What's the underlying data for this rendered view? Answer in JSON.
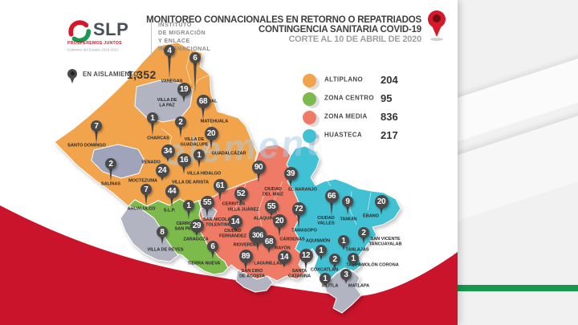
{
  "brand": {
    "slp": "SLP",
    "slogan": "PROSPEREMOS JUNTOS",
    "government": "Gobierno del Estado 2019-2021",
    "institute_lines": [
      "INSTITUTO",
      "DE MIGRACIÓN",
      "Y ENLACE",
      "INTERNACIONAL"
    ]
  },
  "title": {
    "line1": "MONITOREO CONNACIONALES EN RETORNO O REPATRIADOS",
    "line2": "CONTINGENCIA SANITARIA COVID-19",
    "line3": "CORTE AL 10 DE ABRIL DE 2020"
  },
  "isolation": {
    "label": "EN AISLAMIENTO",
    "value": "1,352"
  },
  "legend": [
    {
      "label": "ALTIPLANO",
      "value": "204",
      "color": "#F2A44C"
    },
    {
      "label": "ZONA CENTRO",
      "value": "95",
      "color": "#7CBA4B"
    },
    {
      "label": "ZONA MEDIA",
      "value": "836",
      "color": "#EF7B66"
    },
    {
      "label": "HUASTECA",
      "value": "217",
      "color": "#41C1D3"
    }
  ],
  "watermark": "element",
  "design": {
    "red": "#C9142B",
    "green_bar": "#17984D",
    "badge": "#4A4A4A",
    "watermark_color": "#A9CBE2",
    "title_color": "#3E3E3E",
    "subtitle_color": "#9E9E9E"
  },
  "map": {
    "zone_colors": {
      "altiplano": "#F2A44C",
      "centro": "#7CBA4B",
      "media": "#EF7B66",
      "huasteca": "#41C1D3",
      "sin_datos": "#B2B5C1",
      "sin_datos_2": "#9FA4BA"
    },
    "municipalities": [
      {
        "name": "Vanegas",
        "zone": "altiplano",
        "value": "4",
        "b": [
          211,
          63
        ],
        "l": [
          214,
          101
        ],
        "lines": [
          "VANEGAS"
        ],
        "t": 30
      },
      {
        "name": "Cedral",
        "zone": "altiplano",
        "value": "6",
        "b": [
          243,
          72
        ],
        "l": [
          259,
          126
        ],
        "lines": [
          "CEDRAL"
        ],
        "t": 40
      },
      {
        "name": "Villa de la Paz",
        "zone": "altiplano",
        "value": "19",
        "b": [
          229,
          111
        ],
        "l": [
          208,
          128
        ],
        "lines": [
          "VILLA DE",
          "LA PAZ"
        ],
        "t": 10
      },
      {
        "name": "Matehuala",
        "zone": "altiplano",
        "value": "68",
        "b": [
          253,
          126
        ],
        "l": [
          267,
          151
        ],
        "lines": [
          "MATEHUALA"
        ],
        "t": 16
      },
      {
        "name": "Charcas",
        "zone": "altiplano",
        "value": "1",
        "b": [
          190,
          147
        ],
        "l": [
          197,
          172
        ],
        "lines": [
          "CHARCAS"
        ],
        "t": 17
      },
      {
        "name": "Villa de Guadalupe",
        "zone": "altiplano",
        "value": "2",
        "b": [
          225,
          152
        ],
        "l": [
          242,
          177
        ],
        "lines": [
          "VILLA DE",
          "GUADALUPE"
        ],
        "t": 15
      },
      {
        "name": "Santo Domingo",
        "zone": "altiplano",
        "value": "7",
        "b": [
          120,
          157
        ],
        "l": [
          108,
          181
        ],
        "lines": [
          "SANTO DOMINGO"
        ],
        "t": 17
      },
      {
        "name": "Salinas",
        "zone": "altiplano",
        "value": "2",
        "b": [
          138,
          204
        ],
        "l": [
          138,
          229
        ],
        "lines": [
          "SALINAS"
        ],
        "t": 17
      },
      {
        "name": "Venado",
        "zone": "altiplano",
        "value": "34",
        "b": [
          209,
          188
        ],
        "l": [
          188,
          202
        ],
        "lines": [
          "VENADO"
        ],
        "t": 7
      },
      {
        "name": "Moctezuma",
        "zone": "altiplano",
        "value": "24",
        "b": [
          202,
          212
        ],
        "l": [
          178,
          225
        ],
        "lines": [
          "MOCTEZUMA"
        ],
        "t": 7
      },
      {
        "name": "Villa de Arista",
        "zone": "altiplano",
        "value": "16",
        "b": [
          229,
          199
        ],
        "l": [
          237,
          227
        ],
        "lines": [
          "VILLA DE ARISTA"
        ],
        "t": 11
      },
      {
        "name": "Villa Hidalgo",
        "zone": "altiplano",
        "value": "1",
        "b": [
          248,
          193
        ],
        "l": [
          254,
          216
        ],
        "lines": [
          "VILLA HIDALGO"
        ],
        "t": 11
      },
      {
        "name": "Guadalcázar",
        "zone": "altiplano",
        "value": "20",
        "b": [
          263,
          166
        ],
        "l": [
          285,
          191
        ],
        "lines": [
          "GUADALCÁZAR"
        ],
        "t": 13
      },
      {
        "name": "Ahualulco",
        "zone": "centro",
        "value": "7",
        "b": [
          182,
          236
        ],
        "l": [
          176,
          260
        ],
        "lines": [
          "AHUALULCO"
        ],
        "t": 15
      },
      {
        "name": "San Luis Potosí",
        "zone": "centro",
        "value": "44",
        "b": [
          214,
          238
        ],
        "l": [
          211,
          262
        ],
        "lines": [
          "S.L.P."
        ],
        "t": 13
      },
      {
        "name": "Cerro de San Pedro",
        "zone": "centro",
        "value": "1",
        "b": [
          235,
          256
        ],
        "l": [
          234,
          282
        ],
        "lines": [
          "CERRO DE",
          "SAN PEDRO"
        ],
        "t": 12
      },
      {
        "name": "Zaragoza",
        "zone": "centro",
        "value": "29",
        "b": [
          245,
          281
        ],
        "l": [
          244,
          298
        ],
        "lines": [
          "ZARAGOZA"
        ],
        "t": 7
      },
      {
        "name": "Villa de Reyes",
        "zone": "centro",
        "value": "8",
        "b": [
          202,
          289
        ],
        "l": [
          206,
          311
        ],
        "lines": [
          "VILLA DE REYES"
        ],
        "t": 11
      },
      {
        "name": "Tierra Nueva",
        "zone": "centro",
        "value": "6",
        "b": [
          265,
          307
        ],
        "l": [
          254,
          328
        ],
        "lines": [
          "TIERRA NUEVA"
        ],
        "t": 11
      },
      {
        "name": "Ciudad del Maíz",
        "zone": "media",
        "value": "90",
        "b": [
          322,
          208
        ],
        "l": [
          340,
          239
        ],
        "lines": [
          "CIUDAD",
          "DEL MAÍZ"
        ],
        "t": 13
      },
      {
        "name": "Cerritos",
        "zone": "media",
        "value": "61",
        "b": [
          274,
          231
        ],
        "l": [
          291,
          254
        ],
        "lines": [
          "CERRITOS"
        ],
        "t": 13
      },
      {
        "name": "Villa Juárez",
        "zone": "media",
        "value": "52",
        "b": [
          300,
          241
        ],
        "l": [
          303,
          261
        ],
        "lines": [
          "VILLA JUÁREZ"
        ],
        "t": 9
      },
      {
        "name": "San Nicolás Tolentino",
        "zone": "media",
        "value": "55",
        "b": [
          258,
          252
        ],
        "l": [
          272,
          277
        ],
        "lines": [
          "SAN NICOLÁS",
          "TOLENTINO"
        ],
        "t": 12
      },
      {
        "name": "Alaquines",
        "zone": "media",
        "value": "55",
        "b": [
          338,
          257
        ],
        "l": [
          332,
          272
        ],
        "lines": [
          "ALAQUINES"
        ],
        "t": 6
      },
      {
        "name": "Ciudad Fernández",
        "zone": "media",
        "value": "14",
        "b": [
          293,
          276
        ],
        "l": [
          290,
          291
        ],
        "lines": [
          "CIUDAD",
          "FERNÁNDEZ"
        ],
        "t": 5
      },
      {
        "name": "Rioverde",
        "zone": "media",
        "value": "306",
        "b": [
          321,
          293
        ],
        "l": [
          305,
          305
        ],
        "lines": [
          "RIOVERDE"
        ],
        "t": 11
      },
      {
        "name": "Rayón",
        "zone": "media",
        "value": "68",
        "b": [
          335,
          301
        ],
        "l": [
          352,
          309
        ],
        "lines": [
          "RAYÓN"
        ],
        "t": 8
      },
      {
        "name": "Cárdenas",
        "zone": "media",
        "value": "20",
        "b": [
          348,
          275
        ],
        "l": [
          364,
          298
        ],
        "lines": [
          "CÁRDENAS"
        ],
        "t": 13
      },
      {
        "name": "San Ciro de Acosta",
        "zone": "media",
        "value": "89",
        "b": [
          306,
          319
        ],
        "l": [
          314,
          341
        ],
        "lines": [
          "SAN CIRO",
          "DE ACOSTA"
        ],
        "t": 12
      },
      {
        "name": "Lagunillas",
        "zone": "media",
        "value": "14",
        "b": [
          354,
          320
        ],
        "l": [
          334,
          328
        ],
        "lines": [
          "LAGUNILLAS"
        ],
        "t": 7
      },
      {
        "name": "Santa Catarina",
        "zone": "media",
        "value": "12",
        "b": [
          381,
          318
        ],
        "l": [
          373,
          341
        ],
        "lines": [
          "SANTA",
          "CATARINA"
        ],
        "t": 11
      },
      {
        "name": "El Naranjo",
        "zone": "huasteca",
        "value": "39",
        "b": [
          362,
          216
        ],
        "l": [
          377,
          236
        ],
        "lines": [
          "EL NARANJO"
        ],
        "t": 11
      },
      {
        "name": "Tamasopo",
        "zone": "huasteca",
        "value": "72",
        "b": [
          372,
          260
        ],
        "l": [
          379,
          287
        ],
        "lines": [
          "TAMASOPO"
        ],
        "t": 18
      },
      {
        "name": "Ciudad Valles",
        "zone": "huasteca",
        "value": "66",
        "b": [
          413,
          244
        ],
        "l": [
          406,
          275
        ],
        "lines": [
          "CIUDAD",
          "VALLES"
        ],
        "t": 18
      },
      {
        "name": "Tamuín",
        "zone": "huasteca",
        "value": "9",
        "b": [
          433,
          251
        ],
        "l": [
          434,
          273
        ],
        "lines": [
          "TAMUÍN"
        ],
        "t": 12
      },
      {
        "name": "Ébano",
        "zone": "huasteca",
        "value": "20",
        "b": [
          475,
          251
        ],
        "l": [
          462,
          269
        ],
        "lines": [
          "ÉBANO"
        ],
        "t": 10
      },
      {
        "name": "San Vicente Tancuayalab",
        "zone": "huasteca",
        "value": "2",
        "b": [
          453,
          290
        ],
        "l": [
          480,
          301
        ],
        "lines": [
          "SAN VICENTE",
          "TANCUAYALAB"
        ],
        "t": 9
      },
      {
        "name": "Tanlajás",
        "zone": "huasteca",
        "value": "1",
        "b": [
          428,
          300
        ],
        "l": [
          445,
          311
        ],
        "lines": [
          "TANLAJÁS"
        ],
        "t": 7
      },
      {
        "name": "Aquismón",
        "zone": "huasteca",
        "value": "1",
        "b": [
          400,
          312
        ],
        "l": [
          396,
          300
        ],
        "lines": [
          "AQUISMÓN"
        ],
        "t": 8
      },
      {
        "name": "Coxcatlán",
        "zone": "huasteca",
        "value": "2",
        "b": [
          417,
          323
        ],
        "l": [
          404,
          336
        ],
        "lines": [
          "COXCATLÁN"
        ],
        "t": 8
      },
      {
        "name": "Tampamolón Corona",
        "zone": "huasteca",
        "value": "1",
        "b": [
          440,
          322
        ],
        "l": [
          464,
          330
        ],
        "lines": [
          "TAMPAMOLÓN CORONA"
        ],
        "t": 6
      },
      {
        "name": "Xilitla",
        "zone": "huasteca",
        "value": "1",
        "b": [
          405,
          347
        ],
        "l": [
          411,
          356
        ],
        "lines": [
          "XILITLA"
        ],
        "t": 5
      },
      {
        "name": "Matlapa",
        "zone": "huasteca",
        "value": "3",
        "b": [
          431,
          342
        ],
        "l": [
          447,
          356
        ],
        "lines": [
          "MATLAPA"
        ],
        "t": 7
      }
    ]
  }
}
